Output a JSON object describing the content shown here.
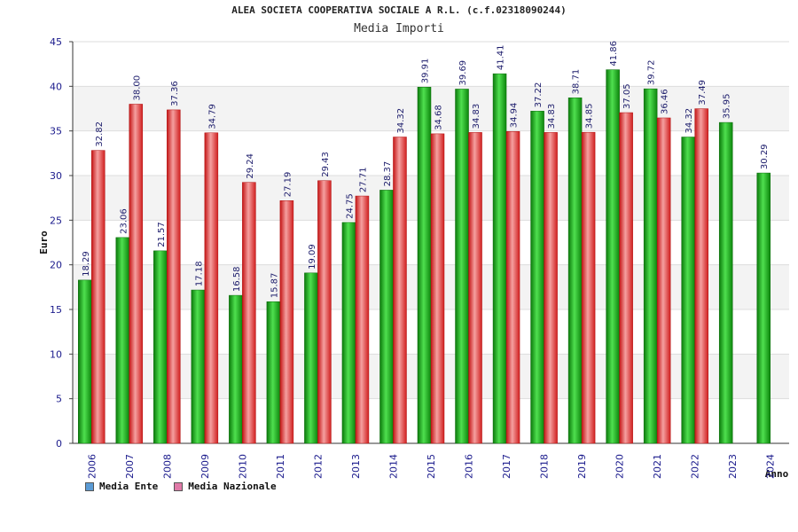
{
  "chart_data": {
    "type": "bar",
    "title": "ALEA SOCIETA COOPERATIVA SOCIALE A R.L. (c.f.02318090244)",
    "subtitle": "Media Importi",
    "ylabel": "Euro",
    "xlabel": "Anno",
    "ylim": [
      0,
      45
    ],
    "yticks": [
      0,
      5,
      10,
      15,
      20,
      25,
      30,
      35,
      40,
      45
    ],
    "grid": true,
    "legend_position": "bottom-left",
    "categories": [
      "2006",
      "2007",
      "2008",
      "2009",
      "2010",
      "2011",
      "2012",
      "2013",
      "2014",
      "2015",
      "2016",
      "2017",
      "2018",
      "2019",
      "2020",
      "2021",
      "2022",
      "2023",
      "2024"
    ],
    "series": [
      {
        "name": "Media Ente",
        "color": "#1aa31a",
        "legend_color": "#5b9bd5",
        "values": [
          18.29,
          23.06,
          21.57,
          17.18,
          16.58,
          15.87,
          19.09,
          24.75,
          28.37,
          39.91,
          39.69,
          41.41,
          37.22,
          38.71,
          41.86,
          39.72,
          34.32,
          35.95,
          30.29
        ],
        "labels": [
          "18.29",
          "23.06",
          "21.57",
          "17.18",
          "16.58",
          "15.87",
          "19.09",
          "24.75",
          "28.37",
          "39.91",
          "39.69",
          "41.41",
          "37.22",
          "38.71",
          "41.86",
          "39.72",
          "34.32",
          "35.95",
          "30.29"
        ]
      },
      {
        "name": "Media Nazionale",
        "color": "#e52b2b",
        "legend_color": "#e07aa8",
        "values": [
          32.82,
          38.0,
          37.36,
          34.79,
          29.24,
          27.19,
          29.43,
          27.71,
          34.32,
          34.68,
          34.83,
          34.94,
          34.83,
          34.85,
          37.05,
          36.46,
          37.49,
          null,
          null
        ],
        "labels": [
          "32.82",
          "38.00",
          "37.36",
          "34.79",
          "29.24",
          "27.19",
          "29.43",
          "27.71",
          "34.32",
          "34.68",
          "34.83",
          "34.94",
          "34.83",
          "34.85",
          "37.05",
          "36.46",
          "37.49",
          null,
          null
        ]
      }
    ]
  }
}
